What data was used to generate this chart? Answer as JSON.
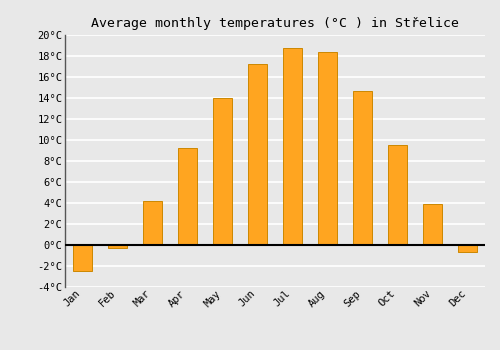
{
  "title": "Average monthly temperatures (°C ) in Střelice",
  "months": [
    "Jan",
    "Feb",
    "Mar",
    "Apr",
    "May",
    "Jun",
    "Jul",
    "Aug",
    "Sep",
    "Oct",
    "Nov",
    "Dec"
  ],
  "values": [
    -2.5,
    -0.3,
    4.2,
    9.2,
    14.0,
    17.2,
    18.8,
    18.4,
    14.7,
    9.5,
    3.9,
    -0.7
  ],
  "bar_color": "#FFA520",
  "bar_edge_color": "#CC8800",
  "ylim": [
    -4,
    20
  ],
  "yticks": [
    -4,
    -2,
    0,
    2,
    4,
    6,
    8,
    10,
    12,
    14,
    16,
    18,
    20
  ],
  "ytick_labels": [
    "-4°C",
    "-2°C",
    "0°C",
    "2°C",
    "4°C",
    "6°C",
    "8°C",
    "10°C",
    "12°C",
    "14°C",
    "16°C",
    "18°C",
    "20°C"
  ],
  "bg_color": "#e8e8e8",
  "plot_bg_color": "#e8e8e8",
  "grid_color": "#ffffff",
  "zero_line_color": "#000000",
  "left_spine_color": "#555555",
  "title_fontsize": 9.5,
  "tick_fontsize": 7.5,
  "font_family": "monospace"
}
